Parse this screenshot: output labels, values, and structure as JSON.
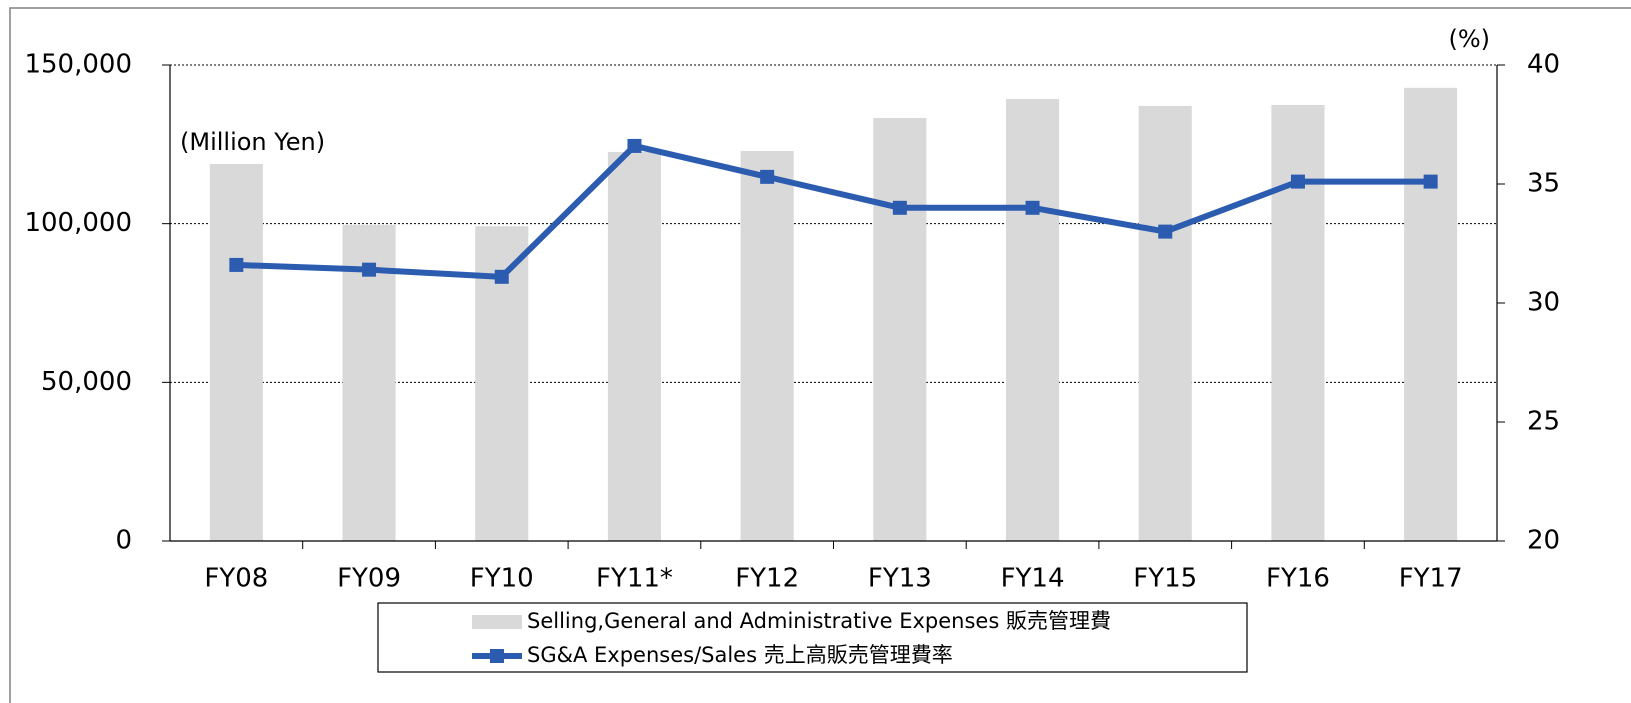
{
  "chart_data": {
    "type": "bar",
    "annotation": "(Million Yen)",
    "y2label": "(%)",
    "categories": [
      "FY08",
      "FY09",
      "FY10",
      "FY11*",
      "FY12",
      "FY13",
      "FY14",
      "FY15",
      "FY16",
      "FY17"
    ],
    "series": [
      {
        "name": "Selling,General and Administrative Expenses 販売管理費",
        "type": "bar",
        "color": "#d9d9d9",
        "values": [
          118800,
          99600,
          99200,
          122600,
          122900,
          133300,
          139300,
          137100,
          137400,
          142800
        ]
      },
      {
        "name": "SG&A Expenses/Sales  売上高販売管理費率",
        "type": "line",
        "color": "#2b5cb0",
        "axis": "y2",
        "values": [
          31.6,
          31.4,
          31.1,
          36.6,
          35.3,
          34.0,
          34.0,
          33.0,
          35.1,
          35.1
        ]
      }
    ],
    "ylim": [
      0,
      150000
    ],
    "yticks": [
      0,
      {
        "value": 50000,
        "label": "50,000"
      },
      {
        "value": 100000,
        "label": "100,000"
      },
      {
        "value": 150000,
        "label": "150,000"
      }
    ],
    "y2lim": [
      20,
      40
    ],
    "y2ticks": [
      20,
      25,
      30,
      35,
      40
    ],
    "grid": true
  }
}
